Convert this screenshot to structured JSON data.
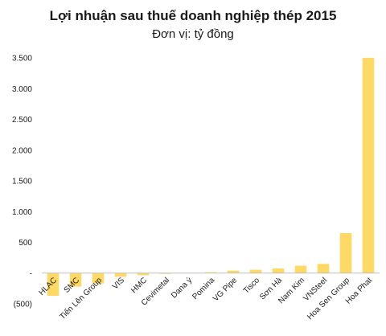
{
  "chart_data": {
    "type": "bar",
    "title": "Lợi nhuận sau thuế doanh nghiệp thép 2015",
    "subtitle": "Đơn vị: tỷ đồng",
    "xlabel": "",
    "ylabel": "",
    "ylim": [
      -500,
      3500
    ],
    "yticks": [
      {
        "value": -500,
        "label": "(500)"
      },
      {
        "value": 0,
        "label": "-"
      },
      {
        "value": 500,
        "label": "500"
      },
      {
        "value": 1000,
        "label": "1.000"
      },
      {
        "value": 1500,
        "label": "1.500"
      },
      {
        "value": 2000,
        "label": "2.000"
      },
      {
        "value": 2500,
        "label": "2.500"
      },
      {
        "value": 3000,
        "label": "3.000"
      },
      {
        "value": 3500,
        "label": "3.500"
      }
    ],
    "categories": [
      "HLAC",
      "SMC",
      "Tiến Lên Group",
      "VIS",
      "HMC",
      "Cevimetal",
      "Dana ý",
      "Pomina",
      "VG Pipe",
      "Tisco",
      "Sơn Hà",
      "Nam Kim",
      "VNSteel",
      "Hoa Sen Group",
      "Hoa Phat"
    ],
    "values": [
      -370,
      -220,
      -170,
      -60,
      -35,
      -5,
      0,
      15,
      40,
      55,
      75,
      120,
      150,
      650,
      3500
    ],
    "grid": false,
    "legend": "none",
    "bar_color": "#FFD966"
  }
}
